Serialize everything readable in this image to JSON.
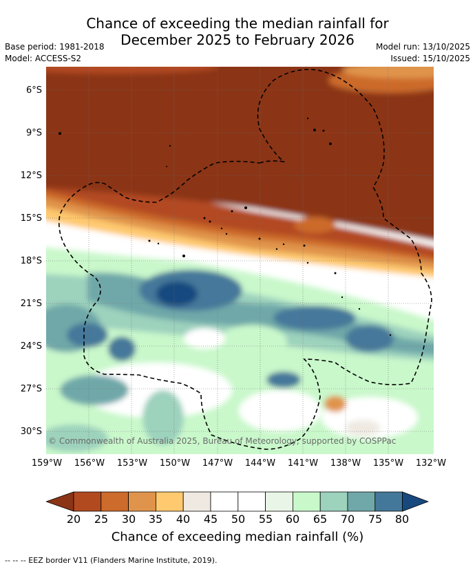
{
  "title": {
    "line1": "Chance of exceeding the median rainfall for",
    "line2": "December 2025 to February 2026"
  },
  "meta": {
    "base_period": "Base period: 1981-2018",
    "model": "Model: ACCESS-S2",
    "model_run": "Model run: 13/10/2025",
    "issued": "Issued: 15/10/2025"
  },
  "map": {
    "lat_labels": [
      "6°S",
      "9°S",
      "12°S",
      "15°S",
      "18°S",
      "21°S",
      "24°S",
      "27°S",
      "30°S"
    ],
    "lon_labels": [
      "159°W",
      "156°W",
      "153°W",
      "150°W",
      "147°W",
      "144°W",
      "141°W",
      "138°W",
      "135°W",
      "132°W"
    ],
    "copyright": "© Commonwealth of Australia 2025, Bureau of Meteorology, supported by COSPPac"
  },
  "colorbar": {
    "labels": [
      "20",
      "25",
      "30",
      "35",
      "40",
      "45",
      "50",
      "55",
      "60",
      "65",
      "70",
      "75",
      "80"
    ],
    "colors": [
      "#8b3416",
      "#b24a20",
      "#cc6b2c",
      "#e0944b",
      "#fec96f",
      "#efe9e2",
      "#ffffff",
      "#ffffff",
      "#e9f6e7",
      "#c9f8cb",
      "#9dd2bd",
      "#70a8a9",
      "#44789a",
      "#17497f"
    ],
    "title": "Chance of exceeding median rainfall (%)"
  },
  "footnote": "--  --  -- EEZ border V11 (Flanders Marine Institute, 2019)."
}
